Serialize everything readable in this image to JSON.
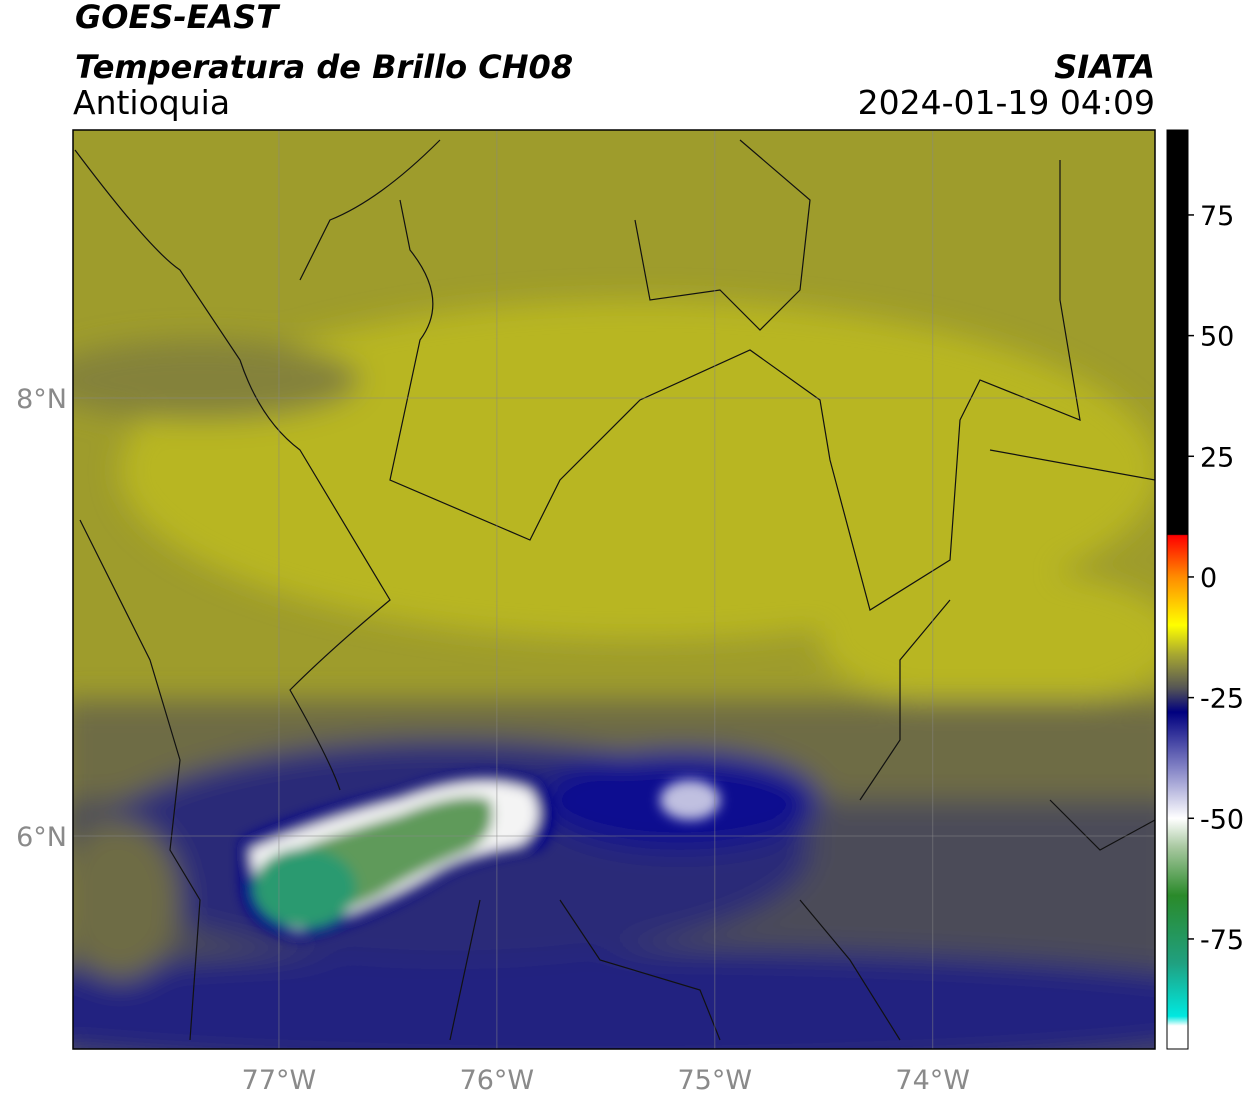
{
  "header": {
    "title": "GOES-EAST",
    "subtitle": "Temperatura de Brillo CH08",
    "region": "Antioquia",
    "source": "SIATA",
    "datetime": "2024-01-19 04:09"
  },
  "map": {
    "lon_range": [
      -77.945,
      -72.98
    ],
    "lat_range": [
      5.027,
      9.224
    ],
    "grid": true,
    "xticks": [
      {
        "value": -77,
        "label": "77°W"
      },
      {
        "value": -76,
        "label": "76°W"
      },
      {
        "value": -75,
        "label": "75°W"
      },
      {
        "value": -74,
        "label": "74°W"
      }
    ],
    "yticks": [
      {
        "value": 8,
        "label": "8°N"
      },
      {
        "value": 6,
        "label": "6°N"
      }
    ]
  },
  "colorbar": {
    "range": [
      -97.8,
      92.6
    ],
    "ticks": [
      75,
      50,
      25,
      0,
      -25,
      -50,
      -75
    ],
    "colormap": [
      {
        "value": 92.6,
        "color": "#000000"
      },
      {
        "value": 8.8,
        "color": "#000000"
      },
      {
        "value": 8.6,
        "color": "#ff0000"
      },
      {
        "value": 0,
        "color": "#ff8c00"
      },
      {
        "value": -10,
        "color": "#ffff00"
      },
      {
        "value": -16,
        "color": "#a8a830"
      },
      {
        "value": -23,
        "color": "#555555"
      },
      {
        "value": -28,
        "color": "#00007f"
      },
      {
        "value": -40,
        "color": "#8888c8"
      },
      {
        "value": -50,
        "color": "#ffffff"
      },
      {
        "value": -56,
        "color": "#a8c8a0"
      },
      {
        "value": -66,
        "color": "#2a8a2a"
      },
      {
        "value": -80,
        "color": "#20a080"
      },
      {
        "value": -91,
        "color": "#00e8e0"
      },
      {
        "value": -93,
        "color": "#ffffff"
      }
    ]
  }
}
